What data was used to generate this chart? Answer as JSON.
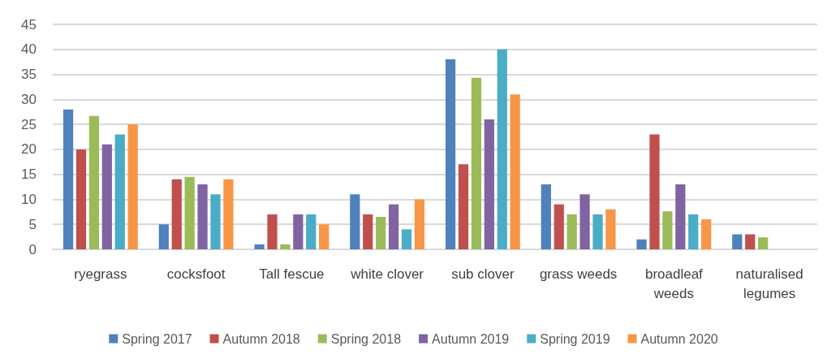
{
  "chart_data": {
    "type": "bar",
    "categories": [
      "ryegrass",
      "cocksfoot",
      "Tall fescue",
      "white clover",
      "sub clover",
      "grass weeds",
      "broadleaf weeds",
      "naturalised legumes"
    ],
    "series": [
      {
        "name": "Spring 2017",
        "color": "#4f81bd",
        "values": [
          28,
          5,
          1,
          11,
          38,
          13,
          2,
          3
        ]
      },
      {
        "name": "Autumn 2018",
        "color": "#c0504d",
        "values": [
          20,
          14,
          7,
          7,
          17,
          9,
          23,
          3
        ]
      },
      {
        "name": "Spring 2018",
        "color": "#9bbb59",
        "values": [
          26.7,
          14.5,
          1,
          6.5,
          34.3,
          7,
          7.6,
          2.4
        ]
      },
      {
        "name": "Autumn 2019",
        "color": "#8064a2",
        "values": [
          21,
          13,
          7,
          9,
          26,
          11,
          13,
          null
        ]
      },
      {
        "name": "Spring 2019",
        "color": "#4bacc6",
        "values": [
          23,
          11,
          7,
          4,
          40,
          7,
          7,
          null
        ]
      },
      {
        "name": "Autumn 2020",
        "color": "#f79646",
        "values": [
          25,
          14,
          5,
          10,
          31,
          8,
          6,
          null
        ]
      }
    ],
    "ylim": [
      0,
      45
    ],
    "yticks": [
      0,
      5,
      10,
      15,
      20,
      25,
      30,
      35,
      40,
      45
    ],
    "grid": "y",
    "legend": "bottom"
  }
}
